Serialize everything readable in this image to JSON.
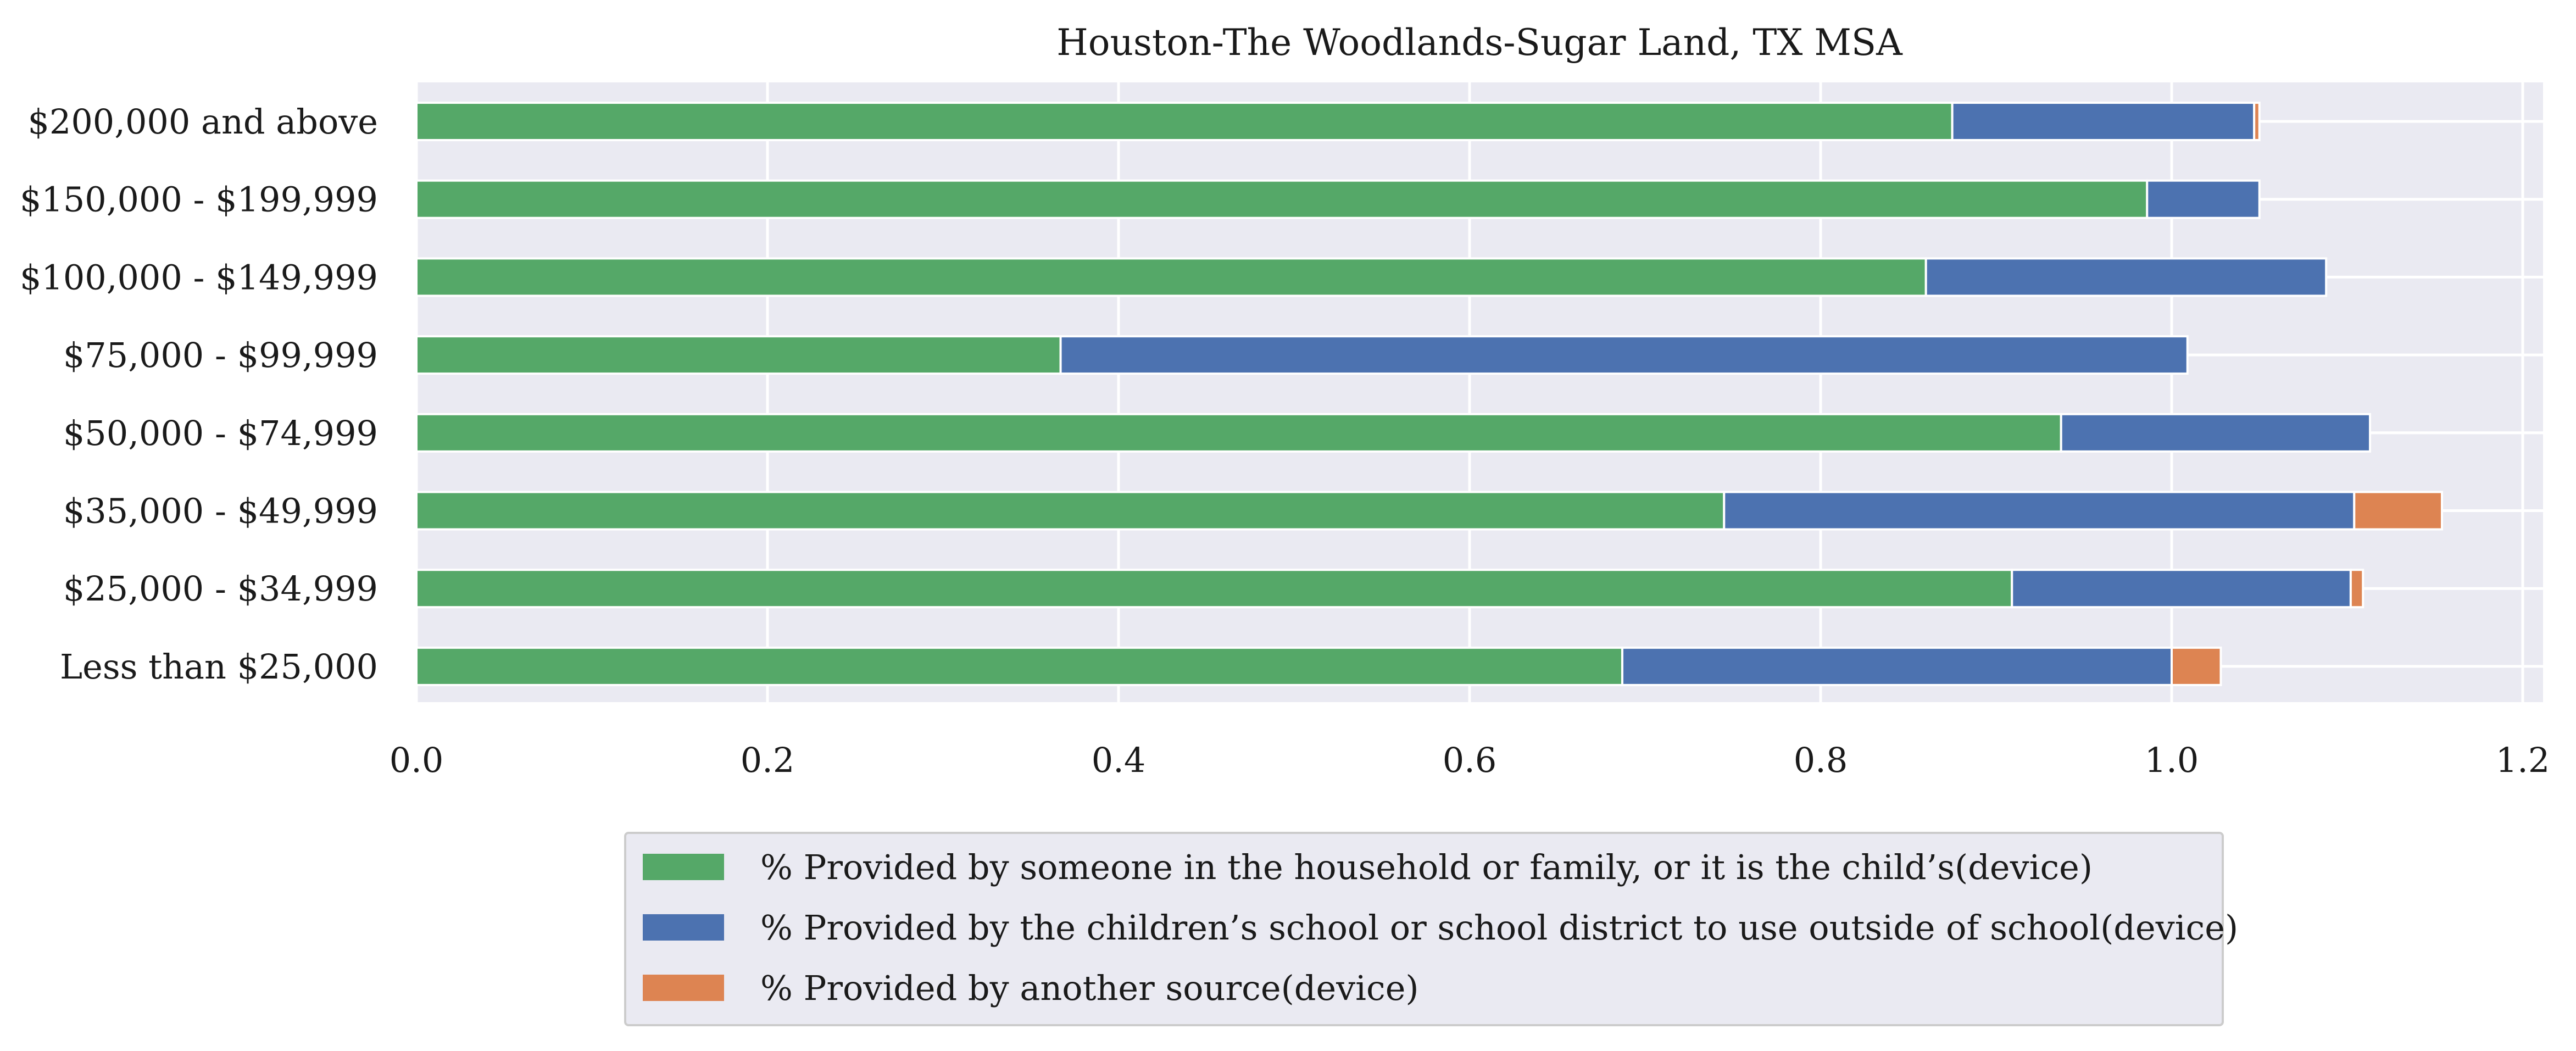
{
  "chart_data": {
    "type": "bar",
    "orientation": "horizontal",
    "stacked": true,
    "title": "Houston-The Woodlands-Sugar Land, TX MSA",
    "xlabel": "",
    "ylabel": "",
    "xlim": [
      0.0,
      1.2
    ],
    "xticks": [
      "0.0",
      "0.2",
      "0.4",
      "0.6",
      "0.8",
      "1.0",
      "1.2"
    ],
    "grid": true,
    "legend_position": "bottom-center",
    "categories": [
      "$200,000 and above",
      "$150,000 - $199,999",
      "$100,000 - $149,999",
      "$75,000 - $99,999",
      "$50,000 - $74,999",
      "$35,000 - $49,999",
      "$25,000 - $34,999",
      "Less than $25,000"
    ],
    "series": [
      {
        "name": "% Provided by someone in the household or family, or it is the child’s(device)",
        "color": "#55a868",
        "values": [
          0.875,
          0.986,
          0.86,
          0.367,
          0.937,
          0.745,
          0.909,
          0.687
        ]
      },
      {
        "name": "% Provided by the children’s school or school district to use outside of school(device)",
        "color": "#4c72b0",
        "values": [
          0.172,
          0.064,
          0.228,
          0.642,
          0.176,
          0.359,
          0.193,
          0.313
        ]
      },
      {
        "name": "% Provided by another source(device)",
        "color": "#dd8452",
        "values": [
          0.003,
          0.0,
          0.0,
          0.0,
          0.0,
          0.05,
          0.007,
          0.028
        ]
      }
    ]
  }
}
